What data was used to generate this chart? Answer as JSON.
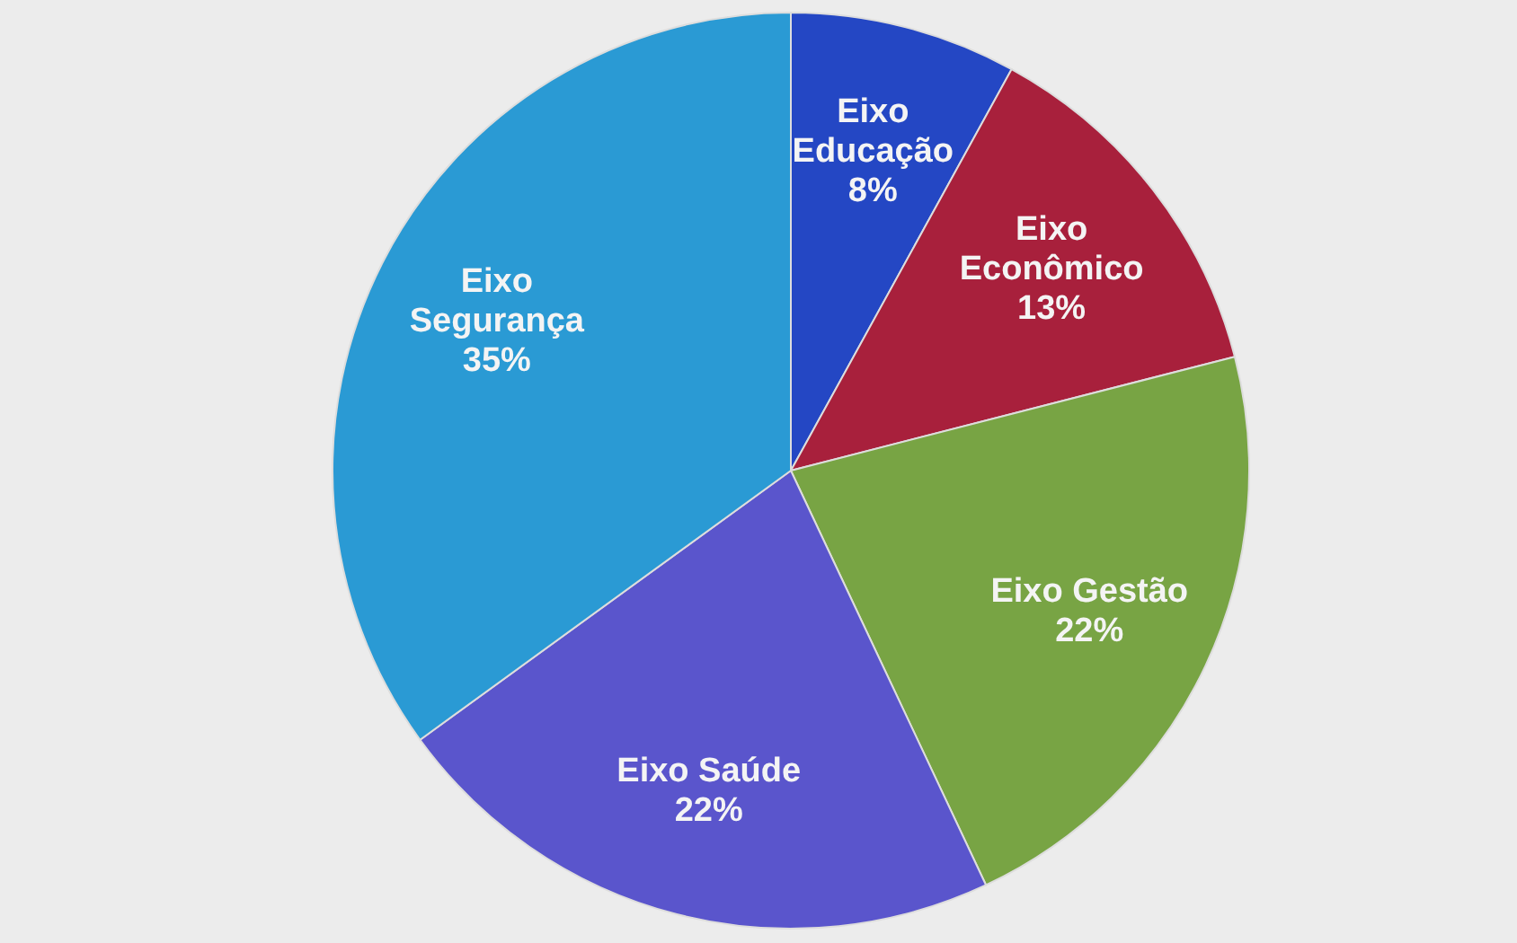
{
  "chart_data": {
    "type": "pie",
    "categories": [
      "Eixo Educação",
      "Eixo Econômico",
      "Eixo Gestão",
      "Eixo Saúde",
      "Eixo Segurança"
    ],
    "values": [
      8,
      13,
      22,
      22,
      35
    ],
    "colors": [
      "#2447c4",
      "#a8203c",
      "#78a444",
      "#5a55cc",
      "#2a9ad4"
    ],
    "value_labels": [
      "8%",
      "13%",
      "22%",
      "22%",
      "35%"
    ]
  }
}
